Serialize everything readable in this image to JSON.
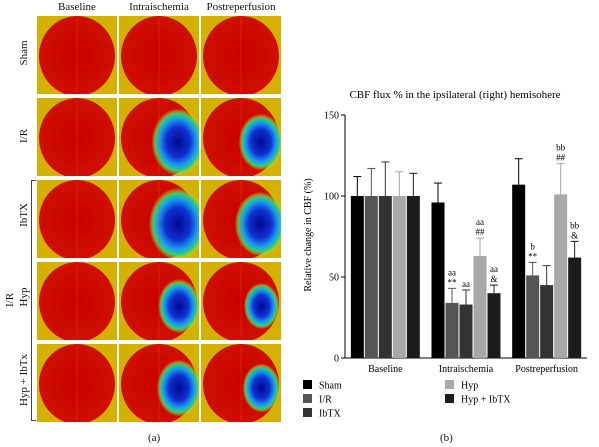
{
  "left_panel": {
    "columns": [
      "Baseline",
      "Intraischemia",
      "Postreperfusion"
    ],
    "rows": [
      "Sham",
      "I/R",
      "IbTX",
      "Hyp",
      "Hyp + IbTx"
    ],
    "group_label": "I/R",
    "panel_label": "(a)"
  },
  "right_panel": {
    "panel_label": "(b)"
  },
  "chart_data": {
    "type": "bar",
    "title": "CBF flux % in the ipsilateral (right) hemisohere",
    "ylabel": "Relative change in CBF (%)",
    "xlabel": "",
    "ylim": [
      0,
      150
    ],
    "yticks": [
      0,
      50,
      100,
      150
    ],
    "categories": [
      "Baseline",
      "Intraischemia",
      "Postreperfusion"
    ],
    "series": [
      {
        "name": "Sham",
        "color": "#000000",
        "values": [
          100,
          96,
          107
        ],
        "errors": [
          12,
          12,
          16
        ],
        "labels": [
          "",
          "",
          ""
        ]
      },
      {
        "name": "I/R",
        "color": "#555555",
        "values": [
          100,
          34,
          51
        ],
        "errors": [
          17,
          9,
          8
        ],
        "labels": [
          "",
          "aa\n**",
          "b\n**"
        ]
      },
      {
        "name": "IbTX",
        "color": "#333333",
        "values": [
          100,
          33,
          45
        ],
        "errors": [
          21,
          9,
          12
        ],
        "labels": [
          "",
          "aa",
          ""
        ]
      },
      {
        "name": "Hyp",
        "color": "#a8a8a8",
        "values": [
          100,
          63,
          101
        ],
        "errors": [
          15,
          11,
          19
        ],
        "labels": [
          "",
          "aa\n##",
          "bb\n##"
        ]
      },
      {
        "name": "Hyp + IbTX",
        "color": "#1c1c1c",
        "values": [
          100,
          40,
          62
        ],
        "errors": [
          14,
          5,
          10
        ],
        "labels": [
          "",
          "aa\n&",
          "bb\n&"
        ]
      }
    ],
    "legend_position": "bottom",
    "grid": false
  }
}
